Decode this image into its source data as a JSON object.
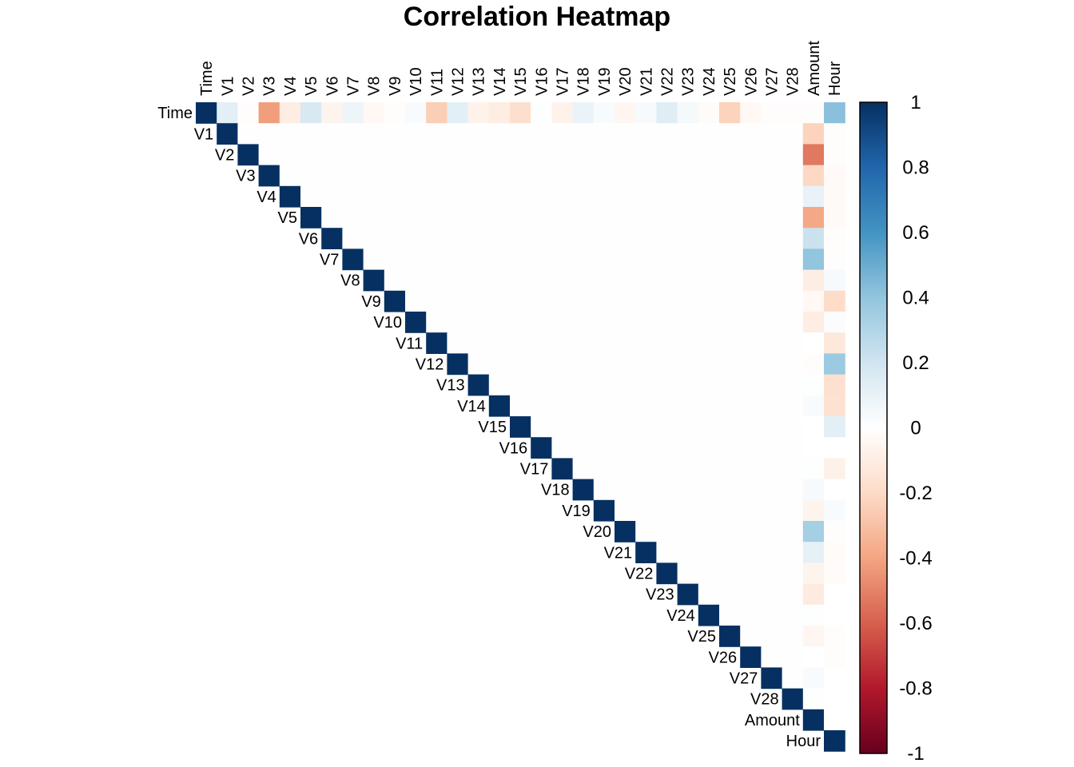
{
  "chart_data": {
    "type": "heatmap",
    "title": "Correlation Heatmap",
    "layout": "upper-triangle",
    "variables": [
      "Time",
      "V1",
      "V2",
      "V3",
      "V4",
      "V5",
      "V6",
      "V7",
      "V8",
      "V9",
      "V10",
      "V11",
      "V12",
      "V13",
      "V14",
      "V15",
      "V16",
      "V17",
      "V18",
      "V19",
      "V20",
      "V21",
      "V22",
      "V23",
      "V24",
      "V25",
      "V26",
      "V27",
      "V28",
      "Amount",
      "Hour"
    ],
    "colorbar": {
      "range": [
        -1,
        1
      ],
      "ticks": [
        "1",
        "0.8",
        "0.6",
        "0.4",
        "0.2",
        "0",
        "-0.2",
        "-0.4",
        "-0.6",
        "-0.8",
        "-1"
      ],
      "colors": [
        "#67001F",
        "#B2182B",
        "#D6604D",
        "#F4A582",
        "#FDDBC7",
        "#FFFFFF",
        "#D1E5F0",
        "#92C5DE",
        "#4393C3",
        "#2166AC",
        "#053061"
      ]
    },
    "diagonal_value": 1,
    "time_row": [
      1,
      0.12,
      -0.01,
      -0.42,
      -0.1,
      0.17,
      -0.06,
      0.08,
      -0.04,
      -0.01,
      0.03,
      -0.25,
      0.12,
      -0.07,
      -0.1,
      -0.18,
      0.01,
      -0.07,
      0.09,
      0.03,
      -0.05,
      0.04,
      0.14,
      0.05,
      -0.02,
      -0.23,
      -0.04,
      -0.01,
      -0.01,
      -0.01,
      0.42
    ],
    "amount_column": [
      -0.01,
      -0.23,
      -0.53,
      -0.21,
      0.1,
      -0.39,
      0.22,
      0.4,
      -0.1,
      -0.04,
      -0.1,
      0.0,
      -0.01,
      0.01,
      0.03,
      -0.0,
      -0.0,
      0.01,
      0.04,
      -0.06,
      0.34,
      0.11,
      -0.06,
      -0.11,
      0.01,
      -0.05,
      -0.0,
      0.03,
      0.01,
      1
    ],
    "hour_column": [
      0.42,
      -0.01,
      -0.01,
      -0.03,
      -0.03,
      -0.03,
      -0.01,
      -0.01,
      0.04,
      -0.19,
      0.02,
      -0.13,
      0.37,
      -0.17,
      -0.16,
      0.12,
      -0.0,
      -0.08,
      -0.0,
      0.03,
      -0.01,
      -0.02,
      -0.02,
      -0.0,
      0.0,
      -0.01,
      -0.01,
      0.0,
      -0.0,
      -0.0,
      1
    ],
    "background_value": -0.005
  }
}
